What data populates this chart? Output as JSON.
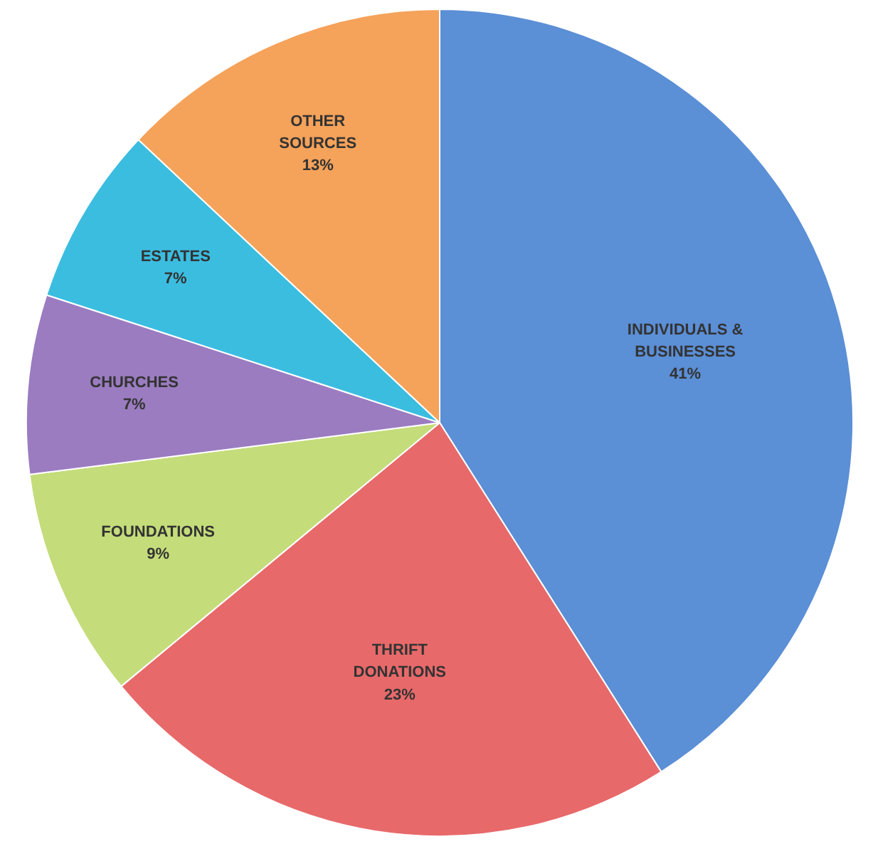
{
  "chart_data": {
    "type": "pie",
    "categories": [
      "INDIVIDUALS &\nBUSINESSES",
      "THRIFT\nDONATIONS",
      "FOUNDATIONS",
      "CHURCHES",
      "ESTATES",
      "OTHER\nSOURCES"
    ],
    "values": [
      41,
      23,
      9,
      7,
      7,
      13
    ],
    "value_labels": [
      "41%",
      "23%",
      "9%",
      "7%",
      "7%",
      "13%"
    ],
    "colors": [
      "#5b8fd6",
      "#e8696a",
      "#c4dc7a",
      "#9b7cc0",
      "#3bbde0",
      "#f5a25a"
    ]
  }
}
